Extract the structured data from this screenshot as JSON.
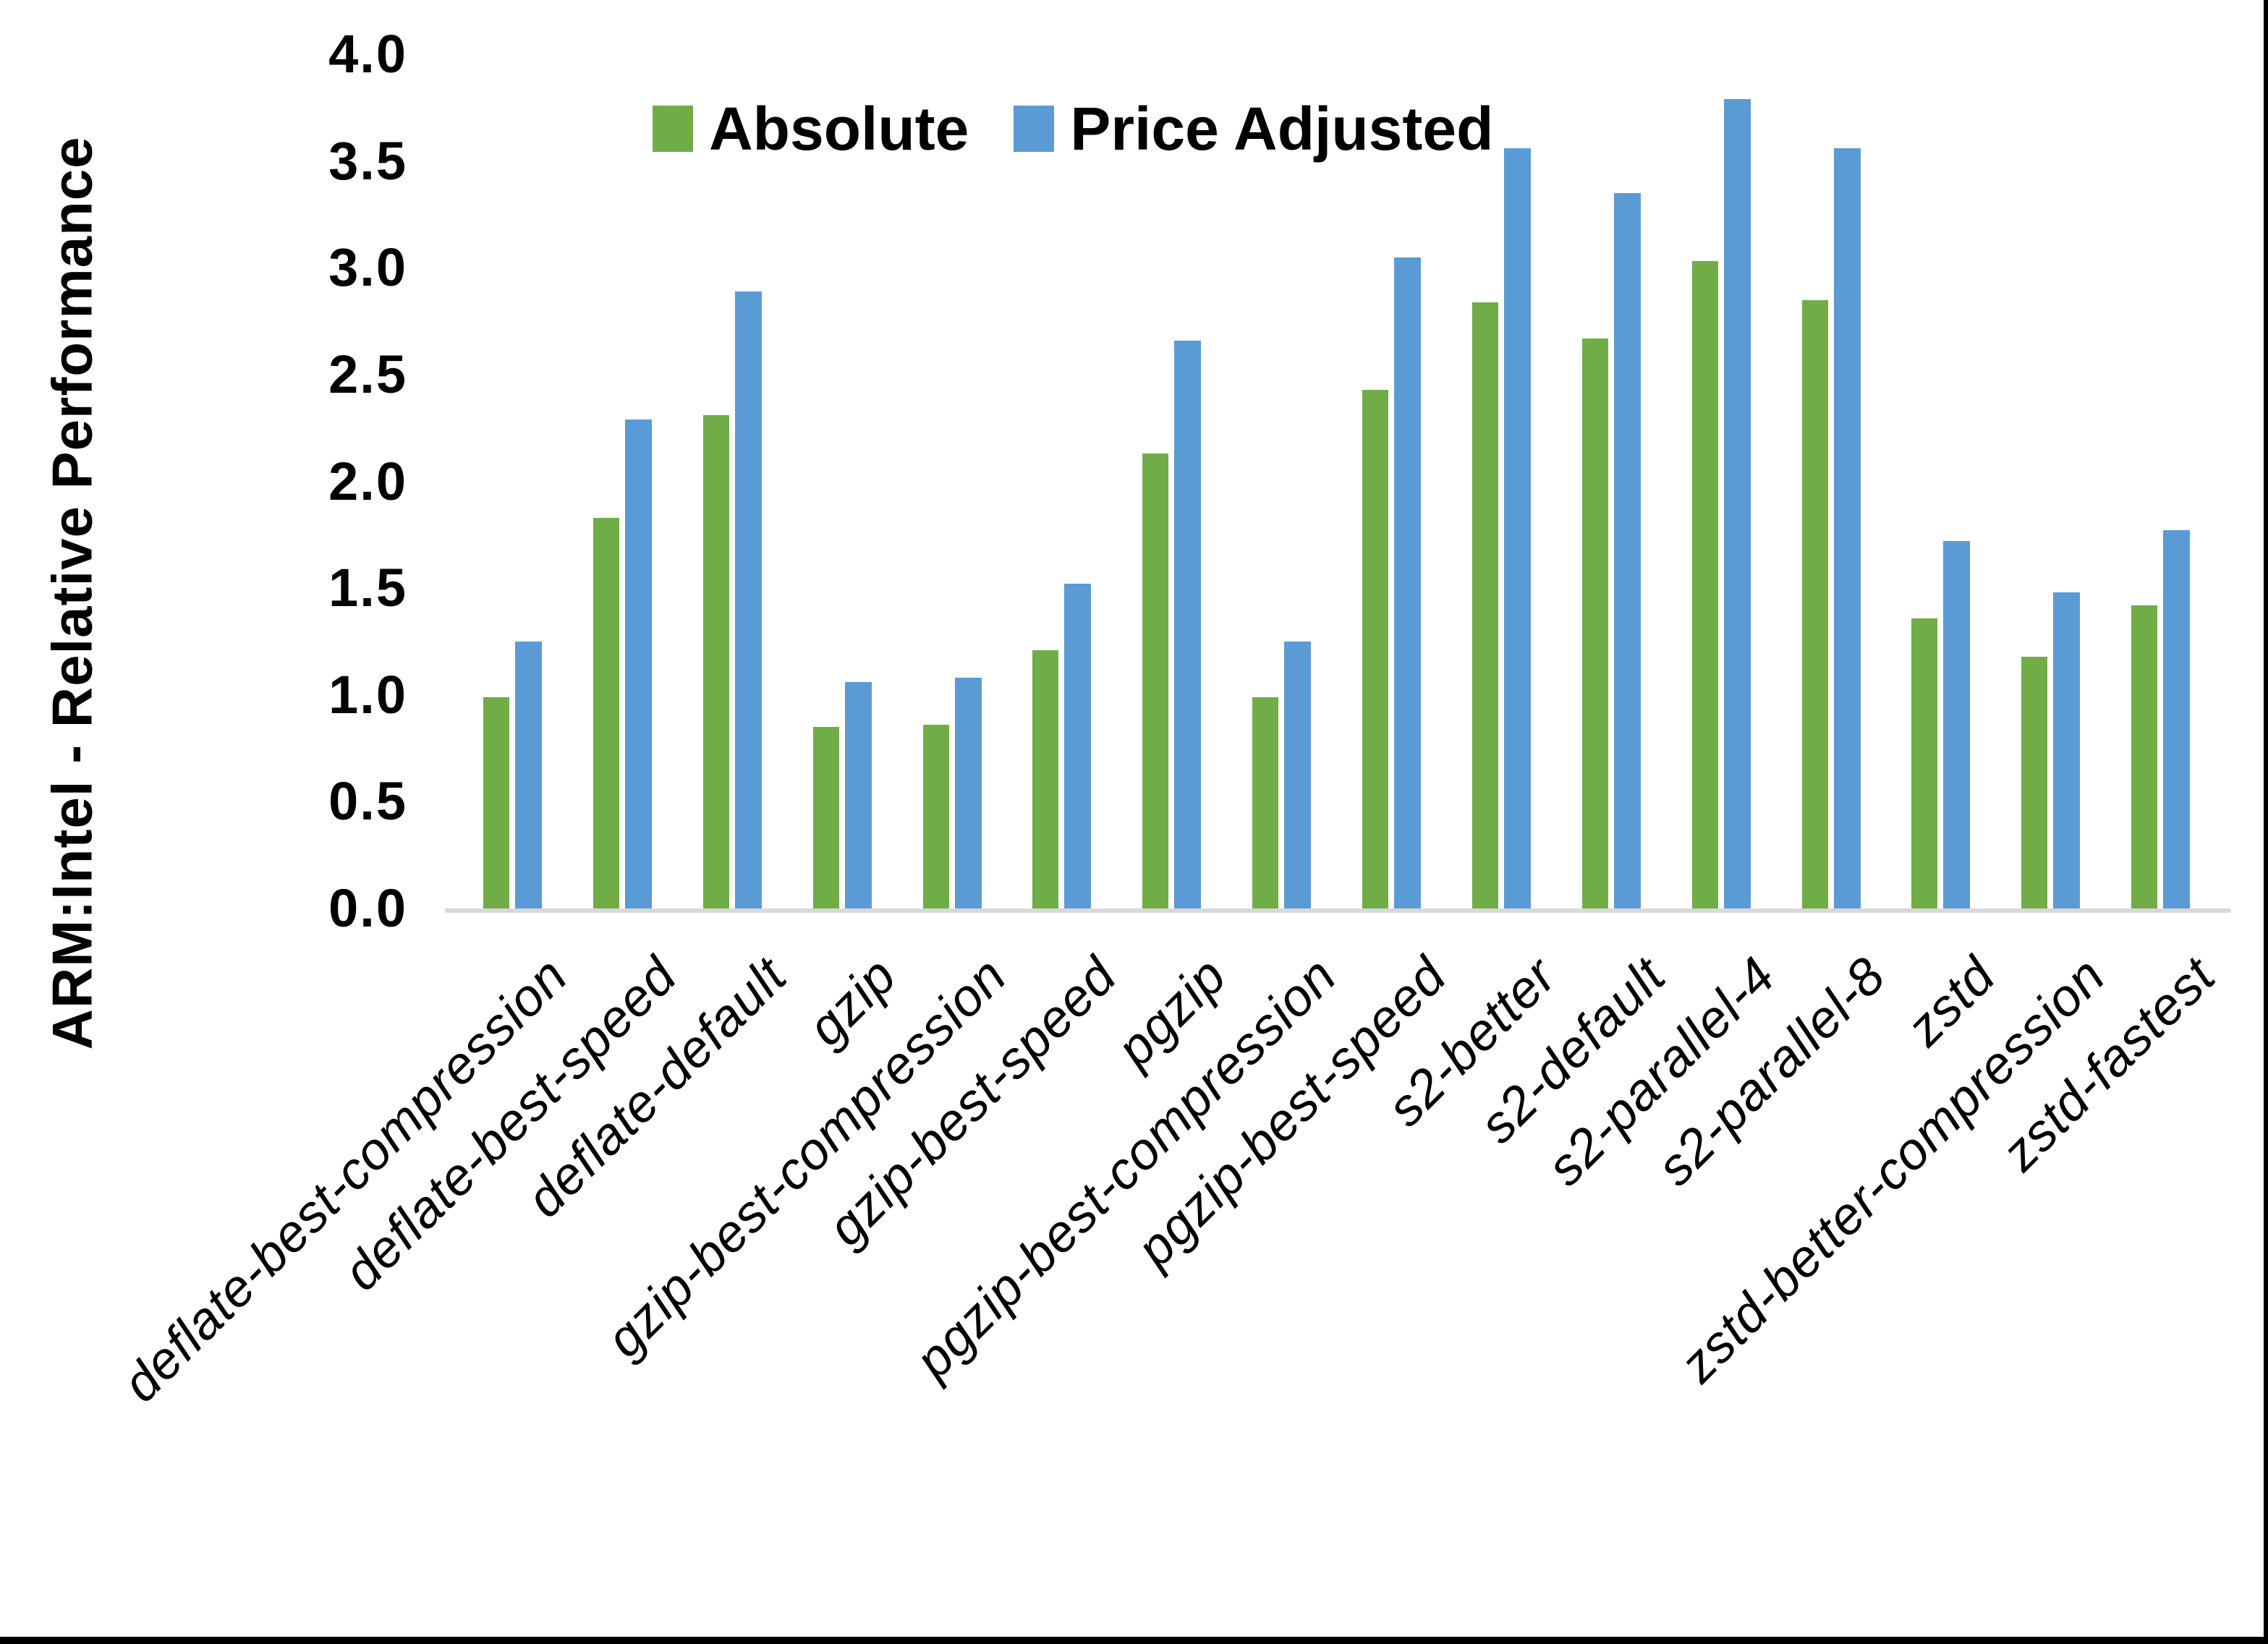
{
  "chart_data": {
    "type": "bar",
    "title": "",
    "xlabel": "",
    "ylabel": "ARM:Intel - Relative Performance",
    "ylim": [
      0.0,
      4.0
    ],
    "ytick_step": 0.5,
    "ytick_labels": [
      "0.0",
      "0.5",
      "1.0",
      "1.5",
      "2.0",
      "2.5",
      "3.0",
      "3.5",
      "4.0"
    ],
    "grid": false,
    "legend_position": "top-center",
    "categories": [
      "deflate-best-compression",
      "deflate-best-speed",
      "deflate-default",
      "gzip",
      "gzip-best-compression",
      "gzip-best-speed",
      "pgzip",
      "pgzip-best-compression",
      "pgzip-best-speed",
      "s2-better",
      "s2-default",
      "s2-parallel-4",
      "s2-parallel-8",
      "zstd",
      "zstd-better-compression",
      "zstd-fastest"
    ],
    "series": [
      {
        "name": "Absolute",
        "color": "#70AD47",
        "values": [
          1.0,
          1.84,
          2.32,
          0.86,
          0.87,
          1.22,
          2.14,
          1.0,
          2.44,
          2.85,
          2.68,
          3.04,
          2.86,
          1.37,
          1.19,
          1.43
        ]
      },
      {
        "name": "Price Adjusted",
        "color": "#5B9BD5",
        "values": [
          1.26,
          2.3,
          2.9,
          1.07,
          1.09,
          1.53,
          2.67,
          1.26,
          3.06,
          3.57,
          3.36,
          3.8,
          3.57,
          1.73,
          1.49,
          1.78
        ]
      }
    ]
  },
  "frame": {
    "background": "#FFFFFF",
    "border_color": "#000000",
    "axis_line_color": "#D9D9D9"
  }
}
